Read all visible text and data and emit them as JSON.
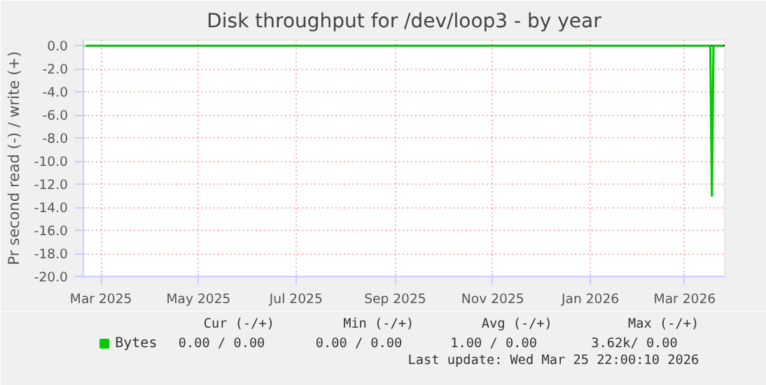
{
  "chart_data": {
    "type": "line",
    "title": "Disk throughput for /dev/loop3 - by year",
    "ylabel": "Pr second read (-) / write (+)",
    "x": [
      "2025-02-18",
      "2026-03-17",
      "2026-03-18",
      "2026-03-19",
      "2026-03-25"
    ],
    "series": [
      {
        "name": "Bytes",
        "color": "#00cc00",
        "values": [
          0,
          0,
          -13,
          0,
          0
        ]
      }
    ],
    "xlim": [
      "2025-02-18",
      "2026-03-26"
    ],
    "xticks": [
      {
        "value": "2025-03-01",
        "label": "Mar 2025"
      },
      {
        "value": "2025-05-01",
        "label": "May 2025"
      },
      {
        "value": "2025-07-01",
        "label": "Jul 2025"
      },
      {
        "value": "2025-09-01",
        "label": "Sep 2025"
      },
      {
        "value": "2025-11-01",
        "label": "Nov 2025"
      },
      {
        "value": "2026-01-01",
        "label": "Jan 2026"
      },
      {
        "value": "2026-03-01",
        "label": "Mar 2026"
      }
    ],
    "ylim": [
      -20,
      0.5
    ],
    "yticks": [
      {
        "value": 0,
        "label": "0.0"
      },
      {
        "value": -2,
        "label": "-2.0"
      },
      {
        "value": -4,
        "label": "-4.0"
      },
      {
        "value": -6,
        "label": "-6.0"
      },
      {
        "value": -8,
        "label": "-8.0"
      },
      {
        "value": -10,
        "label": "-10.0"
      },
      {
        "value": -12,
        "label": "-12.0"
      },
      {
        "value": -14,
        "label": "-14.0"
      },
      {
        "value": -16,
        "label": "-16.0"
      },
      {
        "value": -18,
        "label": "-18.0"
      },
      {
        "value": -20,
        "label": "-20.0"
      }
    ],
    "ref_lines": [
      {
        "axis": "y",
        "value": 0,
        "label": null,
        "color": "#000000"
      }
    ],
    "grid": true,
    "legend": "bottom",
    "annotations": [
      "Cur (-/+)",
      "Min (-/+)",
      "Avg (-/+)",
      "Max (-/+)",
      "0.00 /    0.00",
      "0.00 /    0.00",
      "1.00 /    0.00",
      "3.62k/    0.00",
      "Last update: Wed Mar 25 22:00:10 2026"
    ]
  }
}
